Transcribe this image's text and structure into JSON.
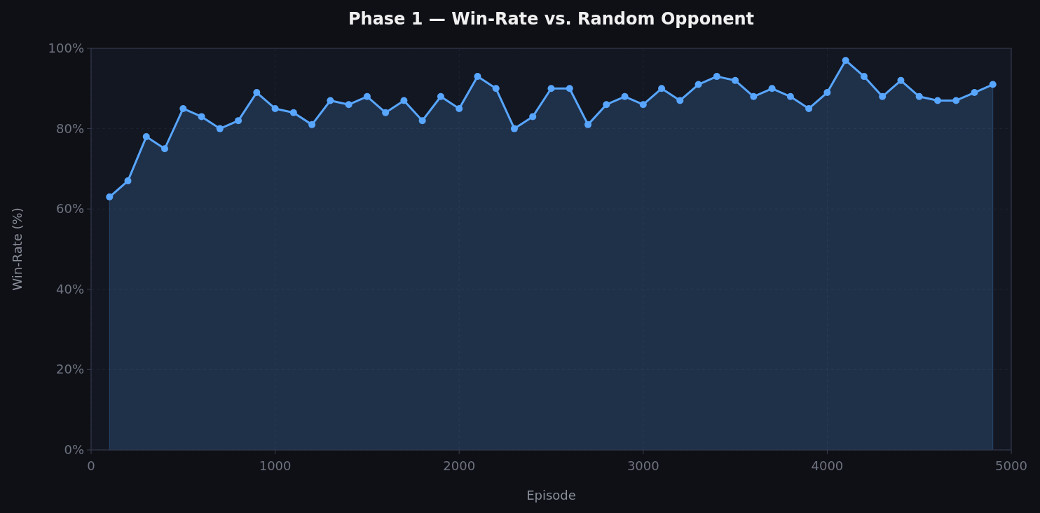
{
  "chart_data": {
    "type": "area",
    "title": "Phase 1 — Win-Rate vs. Random Opponent",
    "xlabel": "Episode",
    "ylabel": "Win-Rate (%)",
    "x": [
      100,
      200,
      300,
      400,
      500,
      600,
      700,
      800,
      900,
      1000,
      1100,
      1200,
      1300,
      1400,
      1500,
      1600,
      1700,
      1800,
      1900,
      2000,
      2100,
      2200,
      2300,
      2400,
      2500,
      2600,
      2700,
      2800,
      2900,
      3000,
      3100,
      3200,
      3300,
      3400,
      3500,
      3600,
      3700,
      3800,
      3900,
      4000,
      4100,
      4200,
      4300,
      4400,
      4500,
      4600,
      4700,
      4800,
      4900
    ],
    "series": [
      {
        "color": "#58a6ff",
        "values": [
          63,
          67,
          78,
          75,
          85,
          83,
          80,
          82,
          89,
          85,
          84,
          81,
          87,
          86,
          88,
          84,
          87,
          82,
          88,
          85,
          93,
          90,
          80,
          83,
          90,
          90,
          81,
          86,
          88,
          86,
          90,
          87,
          91,
          93,
          92,
          88,
          90,
          88,
          85,
          89,
          97,
          93,
          88,
          92,
          88,
          87,
          87,
          89,
          91
        ]
      }
    ],
    "xlim": [
      0,
      5000
    ],
    "xticks": [
      0,
      1000,
      2000,
      3000,
      4000,
      5000
    ],
    "ylim": [
      0,
      100
    ],
    "yticks": [
      {
        "value": 0,
        "label": "0%"
      },
      {
        "value": 20,
        "label": "20%"
      },
      {
        "value": 40,
        "label": "40%"
      },
      {
        "value": 60,
        "label": "60%"
      },
      {
        "value": 80,
        "label": "80%"
      },
      {
        "value": 100,
        "label": "100%"
      }
    ],
    "grid": true,
    "marker": "circle",
    "line_style": "solid"
  }
}
